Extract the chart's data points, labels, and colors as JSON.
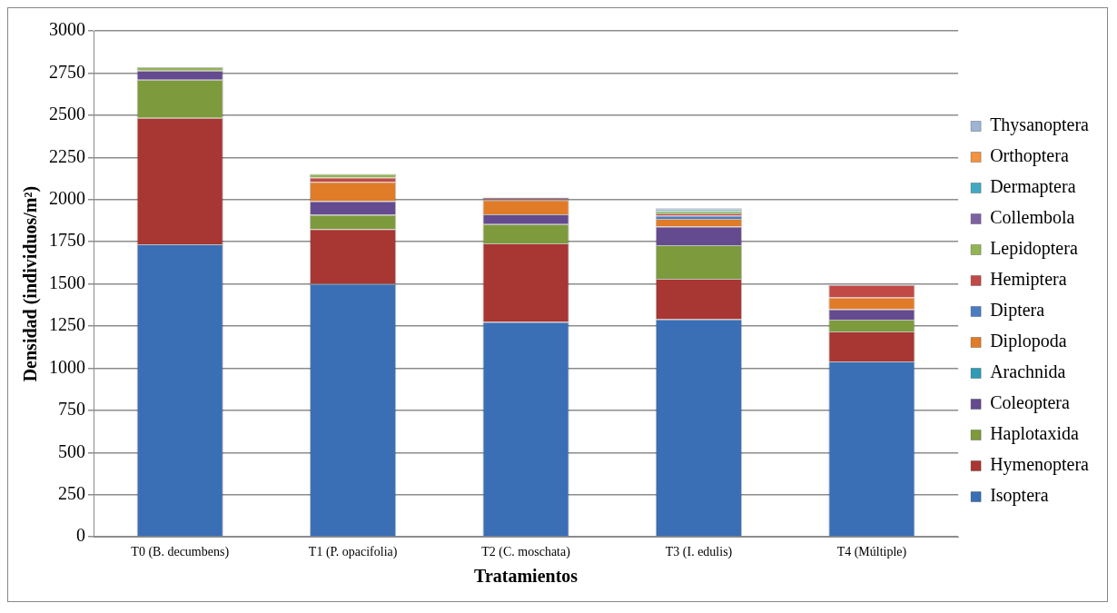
{
  "chart_data": {
    "type": "bar",
    "stacked": true,
    "xlabel": "Tratamientos",
    "ylabel": "Densidad (individuos/m²)",
    "categories": [
      "T0 (B. decumbens)",
      "T1 (P. opacifolia)",
      "T2 (C. moschata)",
      "T3 (I. edulis)",
      "T4 (Múltiple)"
    ],
    "series": [
      {
        "name": "Isoptera",
        "color": "#3a6eb5",
        "values": [
          1735,
          1500,
          1275,
          1290,
          1040
        ]
      },
      {
        "name": "Hymenoptera",
        "color": "#a83632",
        "values": [
          750,
          325,
          465,
          240,
          178
        ]
      },
      {
        "name": "Haplotaxida",
        "color": "#7d9a3c",
        "values": [
          225,
          85,
          115,
          200,
          70
        ]
      },
      {
        "name": "Coleoptera",
        "color": "#644a8e",
        "values": [
          55,
          80,
          57,
          110,
          62
        ]
      },
      {
        "name": "Arachnida",
        "color": "#2f9ab5",
        "values": [
          0,
          0,
          0,
          0,
          0
        ]
      },
      {
        "name": "Diplopoda",
        "color": "#e07b28",
        "values": [
          0,
          115,
          85,
          45,
          70
        ]
      },
      {
        "name": "Diptera",
        "color": "#4a7cc0",
        "values": [
          0,
          0,
          7,
          20,
          0
        ]
      },
      {
        "name": "Hemiptera",
        "color": "#c24a46",
        "values": [
          0,
          25,
          8,
          13,
          74
        ]
      },
      {
        "name": "Lepidoptera",
        "color": "#93b454",
        "values": [
          20,
          22,
          0,
          13,
          0
        ]
      },
      {
        "name": "Collembola",
        "color": "#7d62a3",
        "values": [
          0,
          0,
          0,
          0,
          0
        ]
      },
      {
        "name": "Dermaptera",
        "color": "#43a8c4",
        "values": [
          0,
          0,
          0,
          10,
          0
        ]
      },
      {
        "name": "Orthoptera",
        "color": "#f39240",
        "values": [
          0,
          0,
          0,
          0,
          0
        ]
      },
      {
        "name": "Thysanoptera",
        "color": "#9fb3d3",
        "values": [
          0,
          0,
          0,
          8,
          0
        ]
      }
    ],
    "ylim": [
      0,
      3000
    ],
    "yticks": [
      0,
      250,
      500,
      750,
      1000,
      1250,
      1500,
      1750,
      2000,
      2250,
      2500,
      2750,
      3000
    ],
    "grid": "y",
    "legend": "right"
  }
}
